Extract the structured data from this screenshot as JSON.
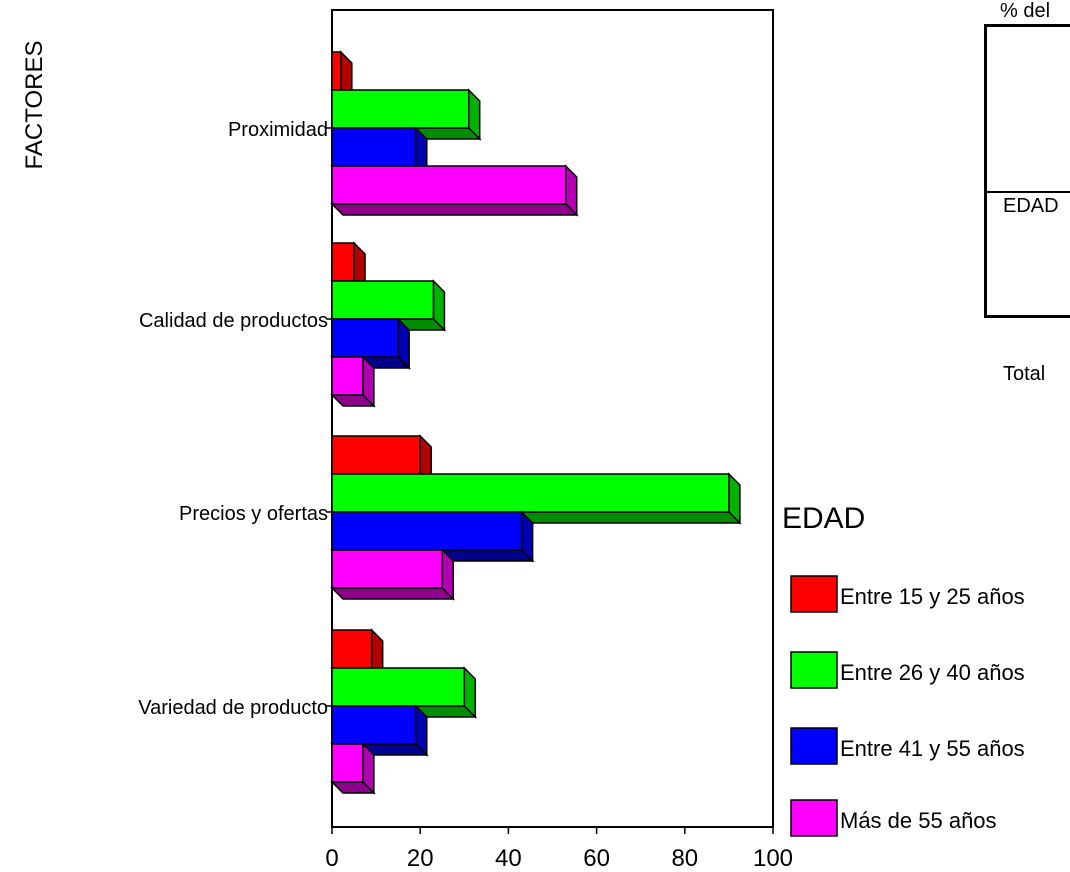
{
  "chart_data": {
    "type": "bar",
    "orientation": "horizontal",
    "style": "3d",
    "ylabel": "FACTORES",
    "xlabel": "",
    "xlim": [
      0,
      100
    ],
    "xticks": [
      "0",
      "20",
      "40",
      "60",
      "80",
      "100"
    ],
    "grid": false,
    "categories": [
      "Proximidad",
      "Calidad de productos",
      "Precios y ofertas",
      "Variedad de producto"
    ],
    "legend": {
      "title": "EDAD",
      "position": "right"
    },
    "series": [
      {
        "name": "Entre 15 y 25 años",
        "color": "#ff0000",
        "values": [
          2,
          5,
          20,
          9
        ]
      },
      {
        "name": "Entre 26 y 40 años",
        "color": "#00ff00",
        "values": [
          31,
          23,
          90,
          30
        ]
      },
      {
        "name": "Entre 41 y 55 años",
        "color": "#0000ff",
        "values": [
          19,
          15,
          43,
          19
        ]
      },
      {
        "name": "Más de 55 años",
        "color": "#ff00ff",
        "values": [
          53,
          7,
          25,
          7
        ]
      }
    ]
  },
  "side_table": {
    "caption": "% del",
    "row_edad": "EDAD",
    "row_total": "Total"
  }
}
